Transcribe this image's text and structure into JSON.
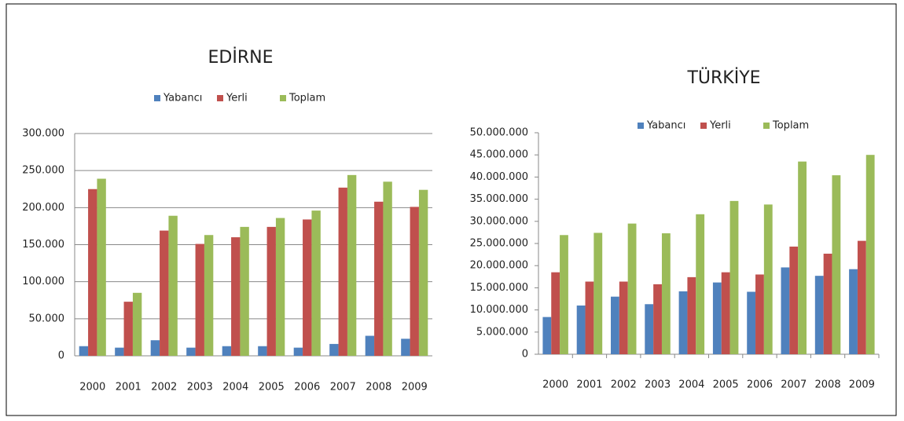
{
  "chart_data": [
    {
      "type": "bar",
      "title": "EDİRNE",
      "categories": [
        "2000",
        "2001",
        "2002",
        "2003",
        "2004",
        "2005",
        "2006",
        "2007",
        "2008",
        "2009"
      ],
      "series": [
        {
          "name": "Yabancı",
          "color": "#4f81bd",
          "values": [
            13000,
            11000,
            21000,
            11000,
            13000,
            13000,
            11000,
            16000,
            27000,
            23000
          ]
        },
        {
          "name": "Yerli",
          "color": "#c0504d",
          "values": [
            225000,
            73000,
            169000,
            151000,
            160000,
            174000,
            184000,
            227000,
            208000,
            201000
          ]
        },
        {
          "name": "Toplam",
          "color": "#9bbb59",
          "values": [
            239000,
            85000,
            189000,
            163000,
            174000,
            186000,
            196000,
            244000,
            235000,
            224000
          ]
        }
      ],
      "ylim": [
        0,
        300000
      ],
      "yticks": [
        0,
        {
          "value": 50000,
          "label": "50.000"
        },
        {
          "value": 100000,
          "label": "100.000"
        },
        {
          "value": 150000,
          "label": "150.000"
        },
        {
          "value": 200000,
          "label": "200.000"
        },
        {
          "value": 250000,
          "label": "250.000"
        },
        {
          "value": 300000,
          "label": "300.000"
        }
      ],
      "grid": true,
      "legend": "top"
    },
    {
      "type": "bar",
      "title": "TÜRKİYE",
      "categories": [
        "2000",
        "2001",
        "2002",
        "2003",
        "2004",
        "2005",
        "2006",
        "2007",
        "2008",
        "2009"
      ],
      "series": [
        {
          "name": "Yabancı",
          "color": "#4f81bd",
          "values": [
            8400000,
            11000000,
            13000000,
            11300000,
            14200000,
            16200000,
            14100000,
            19600000,
            17700000,
            19200000
          ]
        },
        {
          "name": "Yerli",
          "color": "#c0504d",
          "values": [
            18500000,
            16400000,
            16400000,
            15800000,
            17400000,
            18500000,
            18000000,
            24300000,
            22700000,
            25600000
          ]
        },
        {
          "name": "Toplam",
          "color": "#9bbb59",
          "values": [
            26900000,
            27400000,
            29500000,
            27300000,
            31600000,
            34600000,
            33800000,
            43500000,
            40400000,
            45000000
          ]
        }
      ],
      "ylim": [
        0,
        50000000
      ],
      "yticks": [
        0,
        {
          "value": 5000000,
          "label": "5.000.000"
        },
        {
          "value": 10000000,
          "label": "10.000.000"
        },
        {
          "value": 15000000,
          "label": "15.000.000"
        },
        {
          "value": 20000000,
          "label": "20.000.000"
        },
        {
          "value": 25000000,
          "label": "25.000.000"
        },
        {
          "value": 30000000,
          "label": "30.000.000"
        },
        {
          "value": 35000000,
          "label": "35.000.000"
        },
        {
          "value": 40000000,
          "label": "40.000.000"
        },
        {
          "value": 45000000,
          "label": "45.000.000"
        },
        {
          "value": 50000000,
          "label": "50.000.000"
        }
      ],
      "grid": false,
      "legend": "top"
    }
  ]
}
